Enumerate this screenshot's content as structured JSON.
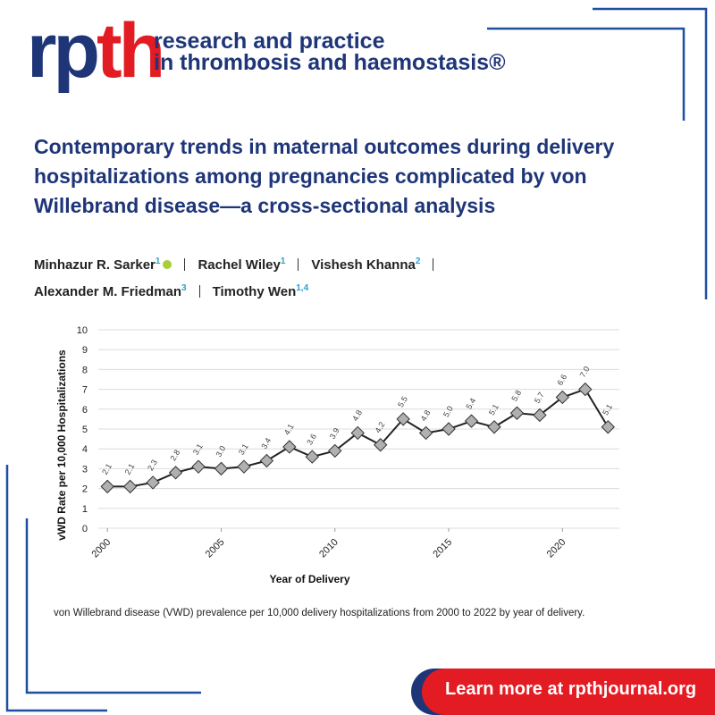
{
  "logo": {
    "part1": "rp",
    "part2": "th"
  },
  "journal": [
    "research and practice",
    "in thrombosis and haemostasis®"
  ],
  "article_title": "Contemporary trends in maternal outcomes during delivery hospitalizations among pregnancies complicated by von Willebrand disease—a cross-sectional analysis",
  "authors": [
    {
      "name": "Minhazur R. Sarker",
      "aff": "1"
    },
    {
      "name": "Rachel Wiley",
      "aff": "1"
    },
    {
      "name": "Vishesh Khanna",
      "aff": "2"
    },
    {
      "name": "Alexander M. Friedman",
      "aff": "3"
    },
    {
      "name": "Timothy Wen",
      "aff": "1,4"
    }
  ],
  "chart_data": {
    "type": "line",
    "x": [
      2000,
      2001,
      2002,
      2003,
      2004,
      2005,
      2006,
      2007,
      2008,
      2009,
      2010,
      2011,
      2012,
      2013,
      2014,
      2015,
      2016,
      2017,
      2018,
      2019,
      2020,
      2021,
      2022
    ],
    "values": [
      2.1,
      2.1,
      2.3,
      2.8,
      3.1,
      3.0,
      3.1,
      3.4,
      4.1,
      3.6,
      3.9,
      4.8,
      4.2,
      5.5,
      4.8,
      5.0,
      5.4,
      5.1,
      5.8,
      5.7,
      6.6,
      7.0,
      5.1
    ],
    "value_labels": [
      "2.1",
      "2.1",
      "2.3",
      "2.8",
      "3.1",
      "3.0",
      "3.1",
      "3.4",
      "4.1",
      "3.6",
      "3.9",
      "4.8",
      "4.2",
      "5.5",
      "4.8",
      "5.0",
      "5.4",
      "5.1",
      "5.8",
      "5.7",
      "6.6",
      "7.0",
      "5.1"
    ],
    "color": "#222222",
    "marker_color": "#b0b0b0",
    "xlim": [
      1999.6,
      2022.5
    ],
    "xticks": [
      2000,
      2005,
      2010,
      2015,
      2020
    ],
    "ylim": [
      0,
      10
    ],
    "yticks": [
      0,
      1,
      2,
      3,
      4,
      5,
      6,
      7,
      8,
      9,
      10
    ],
    "grid": true,
    "x_label": "Year of Delivery",
    "y_label": "vWD Rate per 10,000 Hospitalizations"
  },
  "caption": "von Willebrand disease (VWD) prevalence per 10,000 delivery hospitalizations from 2000 to 2022 by year of delivery.",
  "button": "Learn more at rpthjournal.org"
}
